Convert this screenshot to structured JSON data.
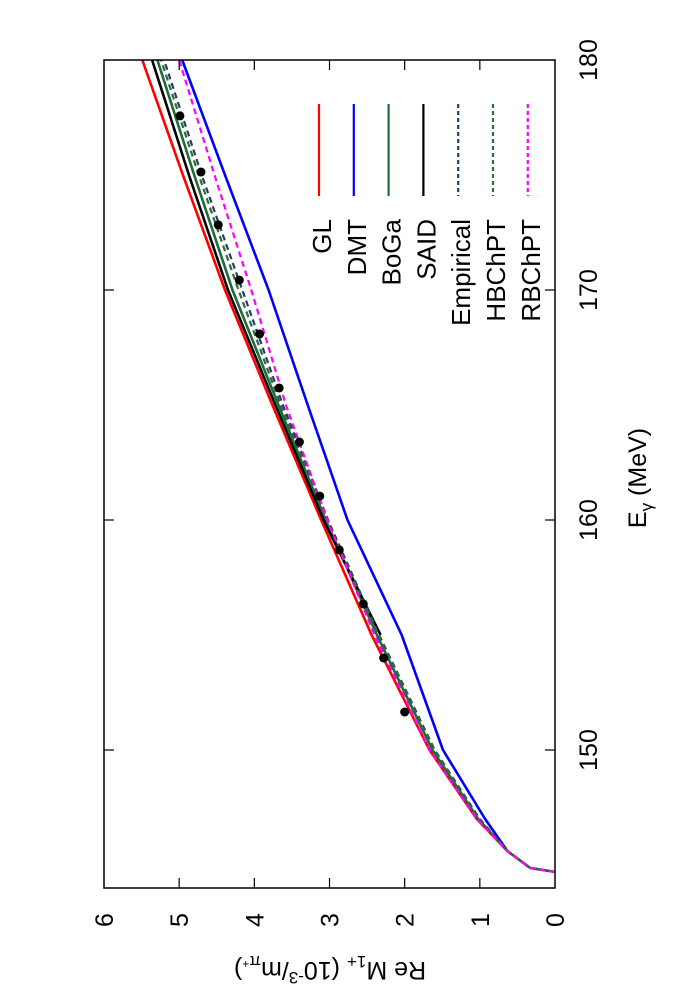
{
  "chart_data": {
    "type": "line",
    "orientation": "rotated 90 degrees counter-clockwise",
    "xlabel": "E",
    "xlabel_sub": "γ",
    "xlabel_unit": "(MeV)",
    "ylabel": "Re M",
    "ylabel_sub": "1+",
    "ylabel_unit_open": "(10",
    "ylabel_unit_exp": "-3",
    "ylabel_unit_mid": "/m",
    "ylabel_unit_sub": "π",
    "ylabel_unit_subsup": "+",
    "ylabel_unit_close": ")",
    "xlim": [
      144,
      180
    ],
    "ylim": [
      0,
      6
    ],
    "xticks": [
      "150",
      "160",
      "170",
      "180"
    ],
    "yticks": [
      "0",
      "1",
      "2",
      "3",
      "4",
      "5",
      "6"
    ],
    "grid": false,
    "legend_position": "top-right",
    "series": [
      {
        "name": "GL",
        "color": "#ff0000",
        "dash": "solid",
        "x": [
          144.7,
          144.87,
          145.6,
          147,
          150,
          155,
          160,
          165,
          170,
          175,
          180
        ],
        "y": [
          0.0,
          0.33,
          0.63,
          1.04,
          1.67,
          2.44,
          3.11,
          3.76,
          4.39,
          4.95,
          5.49
        ]
      },
      {
        "name": "DMT",
        "color": "#0000ff",
        "dash": "solid",
        "x": [
          145.6,
          147,
          150,
          155,
          160,
          165,
          170,
          175,
          180
        ],
        "y": [
          0.63,
          0.93,
          1.49,
          2.04,
          2.76,
          3.29,
          3.81,
          4.39,
          4.96
        ]
      },
      {
        "name": "BoGa",
        "color": "#1e6b3c",
        "dash": "solid",
        "x": [
          144.7,
          144.87,
          145.6,
          147,
          150,
          155,
          160,
          165,
          170,
          175,
          180
        ],
        "y": [
          0.0,
          0.33,
          0.63,
          1.02,
          1.63,
          2.37,
          3.05,
          3.68,
          4.29,
          4.8,
          5.29
        ]
      },
      {
        "name": "SAID",
        "color": "#000000",
        "dash": "solid",
        "x": [
          155,
          160,
          165,
          170,
          175,
          180
        ],
        "y": [
          2.32,
          3.08,
          3.72,
          4.35,
          4.87,
          5.36
        ]
      },
      {
        "name": "Empirical",
        "color": "#1f3f66",
        "dash": "dashed",
        "x": [
          144.7,
          144.87,
          145.6,
          147,
          150,
          155,
          160,
          165,
          170,
          175,
          180
        ],
        "y": [
          0.0,
          0.33,
          0.63,
          1.0,
          1.6,
          2.34,
          3.02,
          3.62,
          4.16,
          4.7,
          5.2
        ]
      },
      {
        "name": "HBChPT",
        "color": "#2f6b3a",
        "dash": "dashed",
        "x": [
          144.7,
          144.87,
          145.6,
          147,
          150,
          155,
          160,
          165,
          170,
          175,
          180
        ],
        "y": [
          0.0,
          0.33,
          0.63,
          1.01,
          1.61,
          2.35,
          3.04,
          3.65,
          4.21,
          4.74,
          5.24
        ]
      },
      {
        "name": "RBChPT",
        "color": "#ff00ff",
        "dash": "dashed",
        "x": [
          144.7,
          144.87,
          145.6,
          147,
          150,
          155,
          160,
          165,
          170,
          175,
          180
        ],
        "y": [
          0.0,
          0.33,
          0.63,
          1.04,
          1.67,
          2.4,
          3.03,
          3.58,
          4.04,
          4.53,
          5.0
        ]
      }
    ],
    "points": {
      "color": "#000000",
      "x": [
        151.65,
        154.0,
        156.35,
        158.7,
        161.04,
        163.39,
        165.74,
        168.09,
        170.43,
        172.83,
        175.13,
        177.57
      ],
      "y": [
        2.0,
        2.28,
        2.55,
        2.87,
        3.13,
        3.4,
        3.67,
        3.93,
        4.2,
        4.48,
        4.71,
        4.99
      ]
    }
  }
}
